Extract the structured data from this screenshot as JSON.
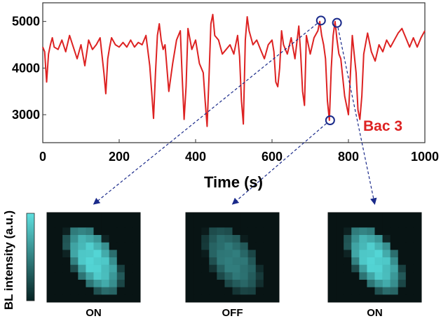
{
  "chart_data": {
    "type": "line",
    "xlabel": "Time (s)",
    "ylabel": "",
    "xlim": [
      0,
      1000
    ],
    "ylim": [
      2400,
      5400
    ],
    "xticks": [
      0,
      200,
      400,
      600,
      800,
      1000
    ],
    "yticks": [
      3000,
      4000,
      5000
    ],
    "grid": false,
    "annotation": "Bac 3",
    "line_color": "#dd2222",
    "marker_color": "#1a2a8a",
    "series": [
      {
        "name": "",
        "x": [
          0,
          5,
          10,
          15,
          20,
          25,
          30,
          40,
          50,
          60,
          70,
          80,
          90,
          100,
          110,
          120,
          130,
          140,
          150,
          160,
          165,
          170,
          175,
          180,
          190,
          200,
          210,
          220,
          230,
          240,
          250,
          260,
          270,
          280,
          285,
          290,
          295,
          300,
          305,
          310,
          315,
          320,
          330,
          340,
          350,
          360,
          365,
          370,
          375,
          380,
          390,
          400,
          410,
          420,
          425,
          430,
          435,
          440,
          445,
          450,
          460,
          470,
          480,
          490,
          500,
          510,
          515,
          520,
          525,
          530,
          535,
          540,
          550,
          560,
          570,
          580,
          590,
          600,
          605,
          610,
          615,
          620,
          625,
          630,
          640,
          650,
          660,
          670,
          675,
          680,
          685,
          690,
          700,
          710,
          720,
          725,
          730,
          735,
          740,
          745,
          750,
          755,
          760,
          765,
          770,
          775,
          780,
          790,
          800,
          810,
          820,
          825,
          830,
          835,
          840,
          850,
          860,
          870,
          880,
          890,
          900,
          910,
          920,
          930,
          940,
          950,
          960,
          970,
          980,
          990,
          1000
        ],
        "values": [
          4450,
          4350,
          3700,
          4300,
          4500,
          4650,
          4450,
          4400,
          4600,
          4350,
          4700,
          4450,
          4200,
          4500,
          4050,
          4600,
          4400,
          4500,
          4650,
          3900,
          3450,
          4200,
          4450,
          4650,
          4500,
          4450,
          4550,
          4450,
          4600,
          4450,
          4550,
          4500,
          4700,
          4050,
          3500,
          2920,
          3900,
          4700,
          4950,
          4600,
          4400,
          4500,
          3500,
          4100,
          4600,
          4800,
          3800,
          2900,
          3600,
          4850,
          4400,
          4600,
          4100,
          3900,
          3300,
          2750,
          3800,
          4950,
          5150,
          4700,
          4600,
          4300,
          4400,
          4500,
          4300,
          4700,
          4250,
          3300,
          2800,
          4600,
          5100,
          4800,
          4500,
          4600,
          4400,
          4200,
          4500,
          4600,
          4350,
          3700,
          3600,
          4000,
          4800,
          4500,
          4300,
          4650,
          4200,
          4900,
          4300,
          3500,
          3200,
          4700,
          4300,
          4650,
          4800,
          5000,
          4700,
          4500,
          4200,
          3300,
          2880,
          4000,
          4700,
          5000,
          4600,
          4300,
          4200,
          3400,
          3000,
          4700,
          3900,
          3100,
          2900,
          3400,
          4300,
          4750,
          4350,
          4150,
          4500,
          4350,
          4600,
          4450,
          4600,
          4750,
          4850,
          4650,
          4450,
          4650,
          4450,
          4650,
          4800
        ]
      }
    ],
    "highlighted_points": [
      {
        "x": 728,
        "y": 5020
      },
      {
        "x": 752,
        "y": 2880
      },
      {
        "x": 770,
        "y": 4970
      }
    ],
    "intensity_axis_label": "BL intensity  (a.u.)",
    "panels": [
      {
        "state": "ON",
        "brightness": 1.0
      },
      {
        "state": "OFF",
        "brightness": 0.55
      },
      {
        "state": "ON",
        "brightness": 1.0
      }
    ]
  }
}
